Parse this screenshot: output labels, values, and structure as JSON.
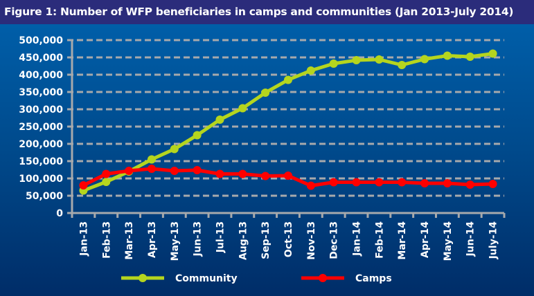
{
  "chart_data": {
    "type": "line",
    "title": "Figure 1: Number of WFP beneficiaries in camps and communities (Jan 2013-July 2014)",
    "xlabel": "",
    "ylabel": "",
    "ylim": [
      0,
      500000
    ],
    "yticks": [
      "0",
      "50,000",
      "100,000",
      "150,000",
      "200,000",
      "250,000",
      "300,000",
      "350,000",
      "400,000",
      "450,000",
      "500,000"
    ],
    "categories": [
      "Jan-13",
      "Feb-13",
      "Mar-13",
      "Apr-13",
      "May-13",
      "Jun-13",
      "Jul-13",
      "Aug-13",
      "Sep-13",
      "Oct-13",
      "Nov-13",
      "Dec-13",
      "Jan-14",
      "Feb-14",
      "Mar-14",
      "Apr-14",
      "May-14",
      "Jun-14",
      "July-14"
    ],
    "grid": true,
    "legend_position": "bottom",
    "series": [
      {
        "name": "Community",
        "color": "#b5d51e",
        "values": [
          65000,
          90000,
          120000,
          155000,
          185000,
          225000,
          270000,
          303000,
          348000,
          385000,
          412000,
          432000,
          442000,
          444000,
          428000,
          445000,
          455000,
          452000,
          461000
        ]
      },
      {
        "name": "Camps",
        "color": "#ff0000",
        "values": [
          80000,
          113000,
          122000,
          128000,
          122000,
          124000,
          113000,
          113000,
          107000,
          108000,
          79000,
          89000,
          89000,
          89000,
          89000,
          86000,
          86000,
          82000,
          84000
        ]
      }
    ]
  }
}
